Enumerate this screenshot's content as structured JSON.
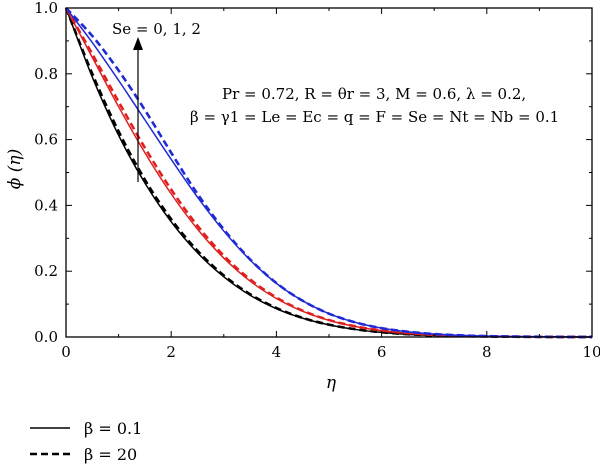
{
  "chart_data": {
    "type": "line",
    "xlabel": "η",
    "ylabel": "ϕ (η)",
    "xlim": [
      0,
      10
    ],
    "ylim": [
      0,
      1
    ],
    "xticks": [
      "0",
      "2",
      "4",
      "6",
      "8",
      "10"
    ],
    "yticks": [
      "0.0",
      "0.2",
      "0.4",
      "0.6",
      "0.8",
      "1.0"
    ],
    "x": [
      0,
      0.5,
      1,
      1.5,
      2,
      2.5,
      3,
      3.5,
      4,
      4.5,
      5,
      5.5,
      6,
      6.5,
      7,
      7.5,
      8,
      8.5,
      9,
      9.5,
      10
    ],
    "series": [
      {
        "name": "Se = 0, β = 0.1",
        "color": "#000000",
        "dash": "solid",
        "values": [
          1.0,
          0.79,
          0.613,
          0.468,
          0.35,
          0.256,
          0.183,
          0.127,
          0.086,
          0.057,
          0.037,
          0.023,
          0.014,
          0.008,
          0.005,
          0.003,
          0.0015,
          0.0008,
          0.0004,
          0.0002,
          0.0001
        ]
      },
      {
        "name": "Se = 0, β = 20",
        "color": "#000000",
        "dash": "dashed",
        "values": [
          1.0,
          0.8,
          0.625,
          0.478,
          0.358,
          0.262,
          0.187,
          0.13,
          0.088,
          0.058,
          0.0375,
          0.0235,
          0.0145,
          0.0085,
          0.005,
          0.003,
          0.0016,
          0.0008,
          0.0004,
          0.0002,
          0.0001
        ]
      },
      {
        "name": "Se = 1, β = 0.1",
        "color": "#e02020",
        "dash": "solid",
        "values": [
          1.0,
          0.85,
          0.7,
          0.56,
          0.435,
          0.328,
          0.24,
          0.17,
          0.117,
          0.078,
          0.0505,
          0.032,
          0.0195,
          0.0115,
          0.0065,
          0.0038,
          0.002,
          0.0011,
          0.0006,
          0.0003,
          0.0001
        ]
      },
      {
        "name": "Se = 1, β = 20",
        "color": "#e02020",
        "dash": "dashed",
        "values": [
          1.0,
          0.86,
          0.715,
          0.575,
          0.448,
          0.338,
          0.247,
          0.175,
          0.12,
          0.08,
          0.0515,
          0.0325,
          0.0198,
          0.0117,
          0.0066,
          0.0038,
          0.0021,
          0.0011,
          0.0006,
          0.0003,
          0.0001
        ]
      },
      {
        "name": "Se = 2, β = 0.1",
        "color": "#1f2ad6",
        "dash": "solid",
        "values": [
          1.0,
          0.895,
          0.78,
          0.66,
          0.54,
          0.425,
          0.322,
          0.234,
          0.163,
          0.11,
          0.071,
          0.0445,
          0.027,
          0.016,
          0.009,
          0.005,
          0.0027,
          0.0014,
          0.0007,
          0.0003,
          0.0001
        ]
      },
      {
        "name": "Se = 2, β = 20",
        "color": "#1f2ad6",
        "dash": "dashed",
        "values": [
          1.0,
          0.915,
          0.81,
          0.69,
          0.56,
          0.435,
          0.327,
          0.236,
          0.164,
          0.11,
          0.071,
          0.0445,
          0.027,
          0.016,
          0.009,
          0.005,
          0.0027,
          0.0014,
          0.0007,
          0.0003,
          0.0001
        ]
      }
    ],
    "annotations": {
      "arrow_label": "Se = 0, 1, 2",
      "params_line1": "Pr = 0.72, R = θr = 3, M = 0.6, λ = 0.2,",
      "params_line2": "β = γ1 = Le = Ec = q = F = Se = Nt = Nb = 0.1"
    },
    "legend": {
      "placement": "bottom-left",
      "entries": [
        {
          "label": "β = 0.1",
          "dash": "solid"
        },
        {
          "label": "β = 20",
          "dash": "dashed"
        }
      ]
    }
  }
}
